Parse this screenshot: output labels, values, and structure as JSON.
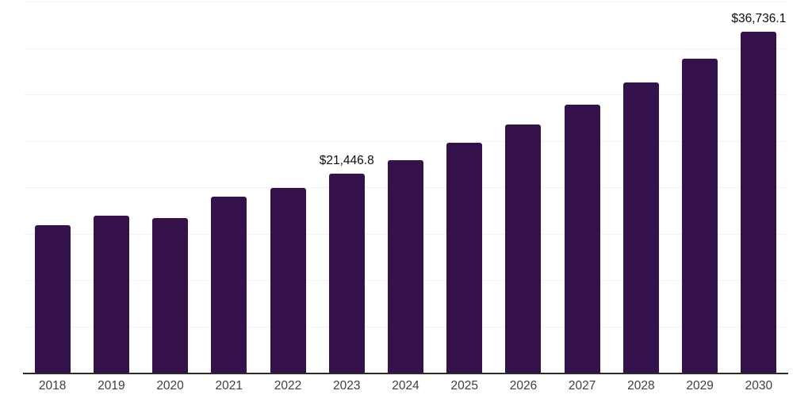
{
  "chart_data": {
    "type": "bar",
    "title": "",
    "xlabel": "",
    "ylabel": "",
    "categories": [
      "2018",
      "2019",
      "2020",
      "2021",
      "2022",
      "2023",
      "2024",
      "2025",
      "2026",
      "2027",
      "2028",
      "2029",
      "2030"
    ],
    "values": [
      15900,
      16950,
      16700,
      19000,
      19950,
      21446.8,
      22950,
      24800,
      26750,
      28900,
      31300,
      33870,
      36736.1
    ],
    "annotations": [
      {
        "category": "2023",
        "text": "$21,446.8"
      },
      {
        "category": "2030",
        "text": "$36,736.1"
      }
    ],
    "ylim": [
      0,
      40000
    ],
    "grid_step": 5000,
    "grid_visible": true,
    "legend_position": "none",
    "y_axis_labels_visible": false,
    "colors": {
      "bar": "#35114b",
      "gridline": "#f3f3f3",
      "axis_line": "#2b2b2b",
      "tick_label": "#3f3f3f",
      "annotation_text": "#0d0d0d",
      "background": "#ffffff"
    }
  }
}
